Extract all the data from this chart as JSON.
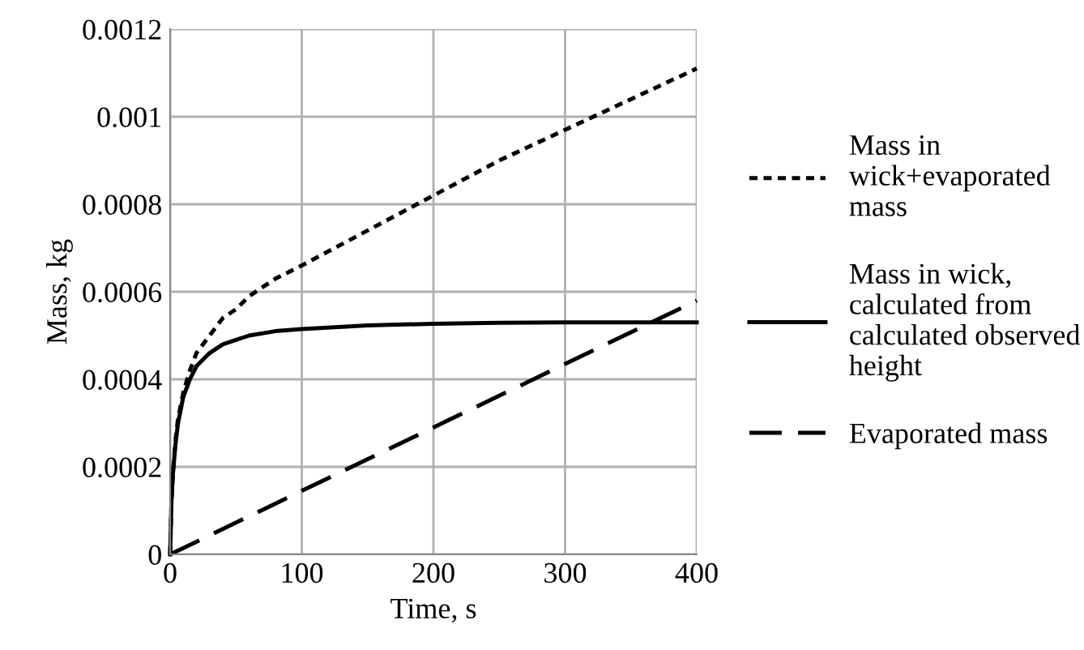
{
  "chart_data": {
    "type": "line",
    "xlabel": "Time, s",
    "ylabel": "Mass, kg",
    "xlim": [
      0,
      400
    ],
    "xticks": [
      0,
      100,
      200,
      300,
      400
    ],
    "ylim": [
      0,
      0.0012
    ],
    "yticks": [
      0,
      0.0002,
      0.0004,
      0.0006,
      0.0008,
      0.001,
      0.0012
    ],
    "grid": true,
    "legend": "right",
    "marker": "none",
    "series": [
      {
        "name": "Mass in\nwick+evaporated\nmass",
        "color": "#000000",
        "line_style": "dotted",
        "x": [
          0,
          1,
          2,
          4,
          6,
          8,
          10,
          15,
          20,
          30,
          40,
          50,
          60,
          80,
          100,
          150,
          200,
          250,
          300,
          350,
          400
        ],
        "values": [
          0,
          0.00012,
          0.00018,
          0.00026,
          0.00031,
          0.00034,
          0.00037,
          0.00042,
          0.00046,
          0.0005,
          0.00054,
          0.00056,
          0.00059,
          0.00063,
          0.00066,
          0.00074,
          0.00082,
          0.0009,
          0.00097,
          0.00104,
          0.00111
        ]
      },
      {
        "name": "Mass in wick,\ncalculated from\ncalculated observed\nheight",
        "color": "#000000",
        "line_style": "solid",
        "x": [
          0,
          1,
          2,
          4,
          6,
          8,
          10,
          15,
          20,
          30,
          40,
          50,
          60,
          80,
          100,
          150,
          200,
          250,
          300,
          350,
          400
        ],
        "values": [
          0,
          0.00012,
          0.00018,
          0.00025,
          0.0003,
          0.00033,
          0.00036,
          0.0004,
          0.00043,
          0.00046,
          0.00048,
          0.00049,
          0.0005,
          0.00051,
          0.000515,
          0.000523,
          0.000527,
          0.000529,
          0.00053,
          0.00053,
          0.00053
        ]
      },
      {
        "name": "Evaporated mass",
        "color": "#000000",
        "line_style": "dashed",
        "x": [
          0,
          400
        ],
        "values": [
          0,
          0.00058
        ]
      }
    ]
  }
}
